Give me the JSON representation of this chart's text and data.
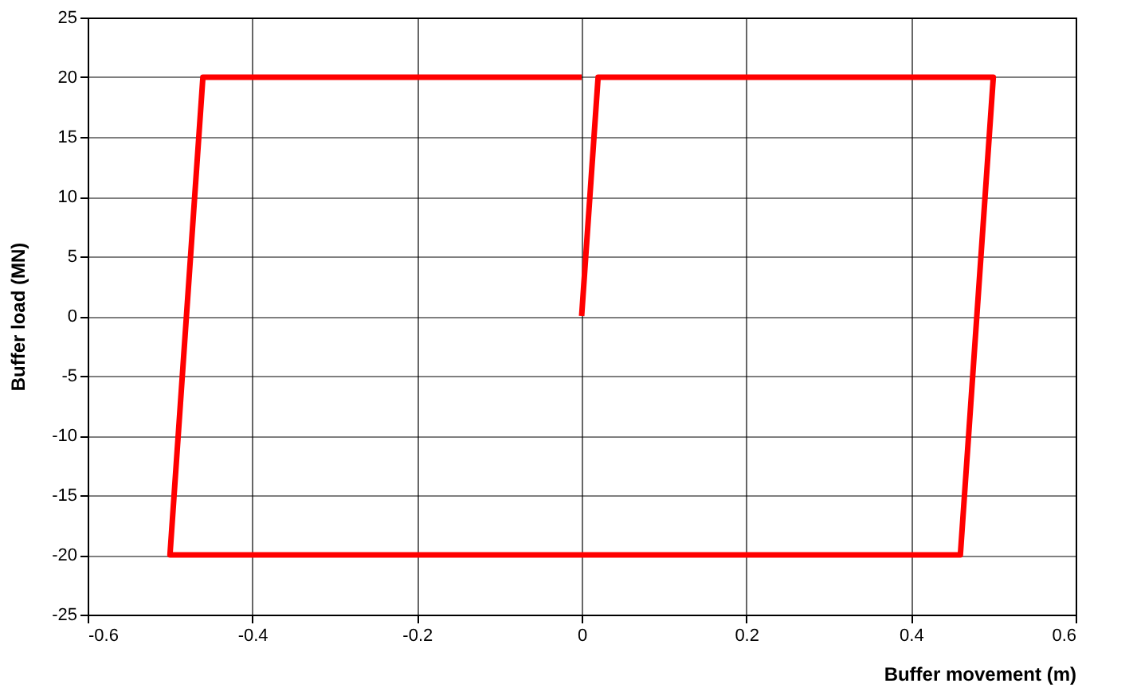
{
  "chart_data": {
    "type": "line",
    "xlabel": "Buffer movement (m)",
    "ylabel": "Buffer load (MN)",
    "series": [
      {
        "color": "#ff0000",
        "x": [
          0,
          0.02,
          0.5,
          0.46,
          -0.5,
          -0.46,
          0
        ],
        "values": [
          0,
          20,
          20,
          -20,
          -20,
          20,
          20
        ]
      }
    ],
    "xlim": [
      -0.6,
      0.6
    ],
    "xticks": [
      -0.6,
      -0.4,
      -0.2,
      0,
      0.2,
      0.4,
      0.6
    ],
    "ylim": [
      -25,
      25
    ],
    "yticks": [
      -25,
      -20,
      -15,
      -10,
      -5,
      0,
      5,
      10,
      15,
      20,
      25
    ],
    "grid": true,
    "line_style": "solid",
    "marker": "none"
  }
}
